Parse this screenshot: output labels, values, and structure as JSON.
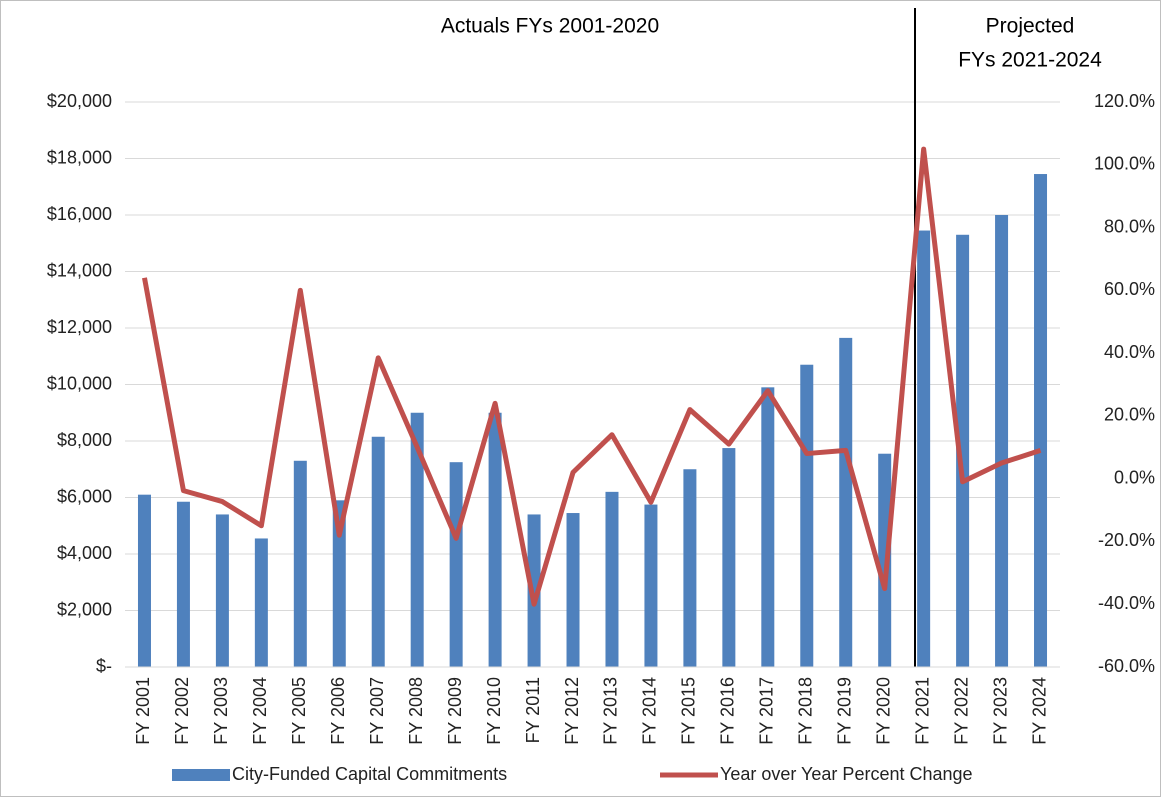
{
  "chart_data": {
    "type": "bar-line",
    "annotations": [
      "Actuals FYs 2001-2020",
      "Projected",
      "FYs 2021-2024"
    ],
    "categories": [
      "FY 2001",
      "FY 2002",
      "FY 2003",
      "FY 2004",
      "FY 2005",
      "FY 2006",
      "FY 2007",
      "FY 2008",
      "FY 2009",
      "FY 2010",
      "FY 2011",
      "FY 2012",
      "FY 2013",
      "FY 2014",
      "FY 2015",
      "FY 2016",
      "FY 2017",
      "FY 2018",
      "FY 2019",
      "FY 2020",
      "FY 2021",
      "FY 2022",
      "FY 2023",
      "FY 2024"
    ],
    "series": [
      {
        "name": "City-Funded Capital Commitments",
        "type": "bar",
        "color": "#4f81bd",
        "values": [
          6100,
          5850,
          5400,
          4550,
          7300,
          5900,
          8150,
          9000,
          7250,
          9000,
          5400,
          5450,
          6200,
          5750,
          7000,
          7750,
          9900,
          10700,
          11650,
          7550,
          15450,
          15300,
          16000,
          17450
        ]
      },
      {
        "name": "Year over Year Percent Change",
        "type": "line",
        "axis": "y2",
        "color": "#c0504d",
        "values": [
          64,
          -3.8,
          -7.3,
          -15,
          60,
          -18,
          38.5,
          10,
          -19,
          24,
          -40,
          2,
          14,
          -7.5,
          22,
          11,
          28,
          8,
          9,
          -35,
          105,
          -1,
          5,
          9
        ]
      }
    ],
    "ylim": [
      0,
      20000
    ],
    "yticks": [
      {
        "value": 0,
        "label": "$-"
      },
      {
        "value": 2000,
        "label": "$2,000"
      },
      {
        "value": 4000,
        "label": "$4,000"
      },
      {
        "value": 6000,
        "label": "$6,000"
      },
      {
        "value": 8000,
        "label": "$8,000"
      },
      {
        "value": 10000,
        "label": "$10,000"
      },
      {
        "value": 12000,
        "label": "$12,000"
      },
      {
        "value": 14000,
        "label": "$14,000"
      },
      {
        "value": 16000,
        "label": "$16,000"
      },
      {
        "value": 18000,
        "label": "$18,000"
      },
      {
        "value": 20000,
        "label": "$20,000"
      }
    ],
    "y2lim": [
      -60,
      120
    ],
    "y2ticks": [
      {
        "value": -60,
        "label": "-60.0%"
      },
      {
        "value": -40,
        "label": "-40.0%"
      },
      {
        "value": -20,
        "label": "-20.0%"
      },
      {
        "value": 0,
        "label": "0.0%"
      },
      {
        "value": 20,
        "label": "20.0%"
      },
      {
        "value": 40,
        "label": "40.0%"
      },
      {
        "value": 60,
        "label": "60.0%"
      },
      {
        "value": 80,
        "label": "80.0%"
      },
      {
        "value": 100,
        "label": "100.0%"
      },
      {
        "value": 120,
        "label": "120.0%"
      }
    ],
    "grid": true
  }
}
